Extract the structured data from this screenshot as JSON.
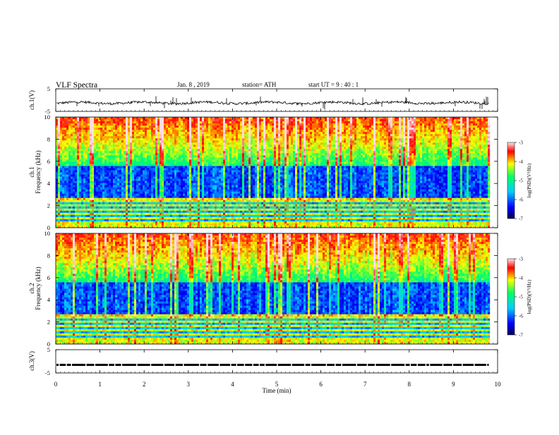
{
  "header": {
    "title": "VLF  Spectra",
    "date": "Jan.  8  , 2019",
    "station": "station= ATH",
    "start_ut": "start  UT  =    9  : 40 : 1"
  },
  "chart_data": [
    {
      "type": "line",
      "ylabel": "ch.1(V)",
      "ylim": [
        -5,
        5
      ],
      "yticks": [
        "5",
        "-5"
      ],
      "xlim": [
        0,
        10
      ],
      "note_values": "waveform fluctuates around about -1 V with frequent short spikes",
      "approx_level": -1.2
    },
    {
      "type": "heatmap",
      "ylabel": "Frequency  (kHz)",
      "channel_label": "ch.1",
      "ylim": [
        0,
        10
      ],
      "yticks": [
        "0",
        "2",
        "4",
        "6",
        "8",
        "10"
      ],
      "xlim": [
        0,
        10
      ],
      "data_end_min": 9.8,
      "colorbar": {
        "label": "log(PSD)(V²/Hz)",
        "range": [
          -7,
          -3
        ],
        "ticks": [
          "-3",
          "-4",
          "-5",
          "-6",
          "-7"
        ]
      }
    },
    {
      "type": "heatmap",
      "ylabel": "Frequency  (kHz)",
      "channel_label": "ch.2",
      "ylim": [
        0,
        10
      ],
      "yticks": [
        "0",
        "2",
        "4",
        "6",
        "8",
        "10"
      ],
      "xlim": [
        0,
        10
      ],
      "data_end_min": 9.8,
      "colorbar": {
        "label": "log(PSD)(V²/Hz)",
        "range": [
          -7,
          -3
        ],
        "ticks": [
          "-3",
          "-4",
          "-5",
          "-6",
          "-7"
        ]
      }
    },
    {
      "type": "line",
      "ylabel": "ch.3(V)",
      "ylim": [
        -5,
        5
      ],
      "yticks": [
        "5",
        "-5"
      ],
      "xlim": [
        0,
        10
      ],
      "approx_level": -1.5
    }
  ],
  "x_axis": {
    "label": "Time  (min)",
    "ticks": [
      "0",
      "1",
      "2",
      "3",
      "4",
      "5",
      "6",
      "7",
      "8",
      "9",
      "10"
    ]
  },
  "colors": {
    "colormap": [
      "#000066",
      "#0000ff",
      "#00ccff",
      "#00ff66",
      "#ffff00",
      "#ff0000",
      "#ffdede"
    ]
  }
}
